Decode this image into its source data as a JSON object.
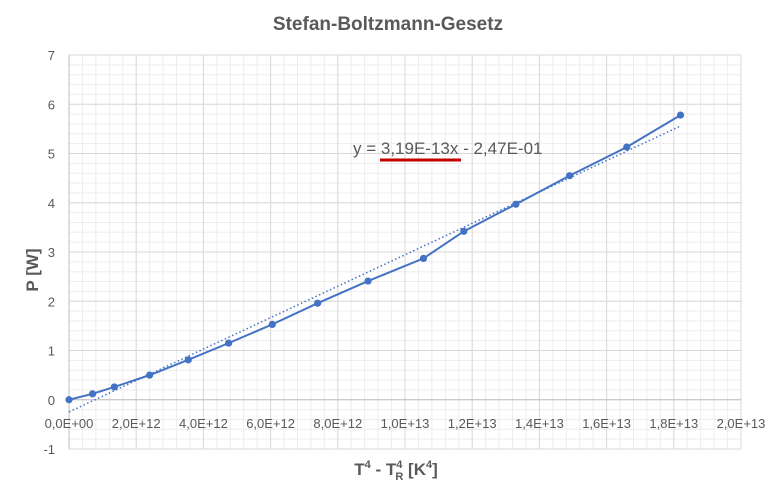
{
  "chart_data": {
    "type": "scatter",
    "title": "Stefan-Boltzmann-Gesetz",
    "xlabel_parts": [
      "T",
      "4",
      " - T",
      "4",
      "R",
      " [K",
      "4",
      "]"
    ],
    "ylabel": "P [W]",
    "xlim": [
      0,
      20000000000000.0
    ],
    "ylim": [
      -1,
      7
    ],
    "x_ticks": [
      0,
      2000000000000.0,
      4000000000000.0,
      6000000000000.0,
      8000000000000.0,
      10000000000000.0,
      12000000000000.0,
      14000000000000.0,
      16000000000000.0,
      18000000000000.0,
      20000000000000.0
    ],
    "x_tick_labels": [
      "0,0E+00",
      "2,0E+12",
      "4,0E+12",
      "6,0E+12",
      "8,0E+12",
      "1,0E+13",
      "1,2E+13",
      "1,4E+13",
      "1,6E+13",
      "1,8E+13",
      "2,0E+13"
    ],
    "y_ticks": [
      -1,
      0,
      1,
      2,
      3,
      4,
      5,
      6,
      7
    ],
    "y_tick_labels": [
      "-1",
      "0",
      "1",
      "2",
      "3",
      "4",
      "5",
      "6",
      "7"
    ],
    "grid": true,
    "series": [
      {
        "x": [
          0,
          700000000000.0,
          1350000000000.0,
          2400000000000.0,
          3550000000000.0,
          4750000000000.0,
          6050000000000.0,
          7400000000000.0,
          8900000000000.0,
          10550000000000.0,
          11750000000000.0,
          13300000000000.0,
          14900000000000.0,
          16600000000000.0,
          18200000000000.0
        ],
        "y": [
          0,
          0.12,
          0.26,
          0.5,
          0.81,
          1.15,
          1.53,
          1.96,
          2.41,
          2.87,
          3.42,
          3.97,
          4.55,
          5.13,
          5.78
        ]
      }
    ],
    "trendline": {
      "type": "linear",
      "slope": 3.19e-13,
      "intercept": -0.247,
      "x_range": [
        0,
        18200000000000.0
      ],
      "equation": "y = 3,19E-13x - 2,47E-01"
    },
    "colors": {
      "series": "#4472c4",
      "underline": "#c00000",
      "grid": "#d9d9d9",
      "text": "#595959"
    }
  }
}
